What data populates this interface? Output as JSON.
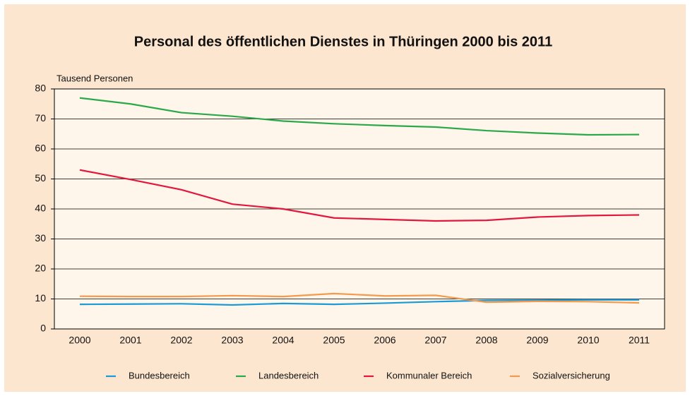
{
  "chart_data": {
    "type": "line",
    "title": "Personal des öffentlichen Dienstes in Thüringen 2000 bis 2011",
    "y_axis_label": "Tausend Personen",
    "categories": [
      "2000",
      "2001",
      "2002",
      "2003",
      "2004",
      "2005",
      "2006",
      "2007",
      "2008",
      "2009",
      "2010",
      "2011"
    ],
    "series": [
      {
        "name": "Bundesbereich",
        "color": "#1a9ad6",
        "values": [
          8.2,
          8.3,
          8.4,
          8.0,
          8.5,
          8.2,
          8.6,
          9.1,
          9.5,
          9.6,
          9.7,
          9.7
        ]
      },
      {
        "name": "Landesbereich",
        "color": "#2aa84a",
        "values": [
          77.0,
          75.0,
          72.1,
          70.9,
          69.3,
          68.4,
          67.8,
          67.3,
          66.1,
          65.3,
          64.7,
          64.8
        ]
      },
      {
        "name": "Kommunaler Bereich",
        "color": "#e3173e",
        "values": [
          53.0,
          49.8,
          46.4,
          41.6,
          40.0,
          37.0,
          36.5,
          36.0,
          36.2,
          37.3,
          37.8,
          38.0
        ]
      },
      {
        "name": "Sozialversicherung",
        "color": "#f39a4f",
        "values": [
          10.9,
          10.8,
          10.8,
          11.1,
          10.8,
          11.8,
          11.0,
          11.2,
          8.9,
          9.2,
          9.1,
          8.7
        ]
      }
    ],
    "ylim": [
      0,
      80
    ],
    "yticks": [
      0,
      10,
      20,
      30,
      40,
      50,
      60,
      70,
      80
    ],
    "grid": true,
    "legend": "bottom"
  }
}
